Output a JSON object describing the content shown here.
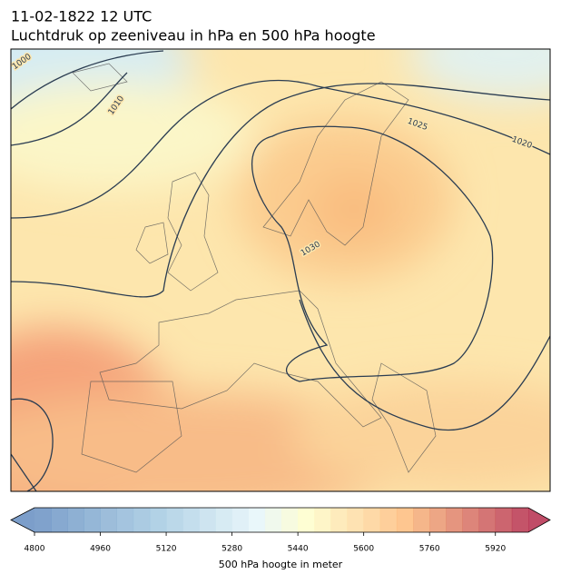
{
  "title": "11-02-1822 12 UTC",
  "subtitle": "Luchtdruk op zeeniveau in hPa en 500 hPa hoogte",
  "isobar_labels": [
    1000,
    1010,
    1025,
    1020,
    1030
  ],
  "colorbar": {
    "label": "500 hPa hoogte in meter",
    "lim": [
      4800,
      6000
    ],
    "ticks": [
      4800,
      4960,
      5120,
      5280,
      5440,
      5600,
      5760,
      5920
    ]
  }
}
